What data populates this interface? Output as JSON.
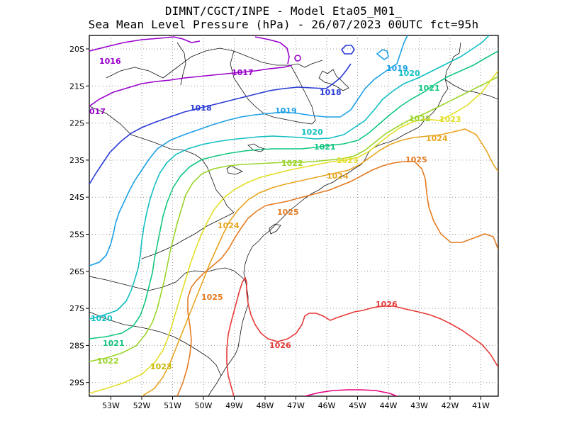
{
  "title_line1": "DIMNT/CGCT/INPE -  Model Eta05_M01_",
  "title_line2": "Sea Mean Level Pressure (hPa) - 26/07/2023 00UTC fct=95h",
  "lon_labels": [
    "53W",
    "52W",
    "51W",
    "50W",
    "49W",
    "48W",
    "47W",
    "46W",
    "45W",
    "44W",
    "43W",
    "42W",
    "41W"
  ],
  "lat_labels": [
    "20S",
    "21S",
    "22S",
    "23S",
    "24S",
    "25S",
    "26S",
    "27S",
    "28S",
    "29S"
  ],
  "isobars": [
    {
      "value": "1016",
      "color": "#9900cc"
    },
    {
      "value": "1017",
      "color": "#9900cc"
    },
    {
      "value": "1018",
      "color": "#2a3bd6"
    },
    {
      "value": "1019",
      "color": "#1ca0e6"
    },
    {
      "value": "1020",
      "color": "#12bfc2"
    },
    {
      "value": "1021",
      "color": "#12c680"
    },
    {
      "value": "1022",
      "color": "#9bd52a"
    },
    {
      "value": "1023",
      "color": "#e3de27"
    },
    {
      "value": "1024",
      "color": "#e8a520"
    },
    {
      "value": "1025",
      "color": "#e57b22"
    },
    {
      "value": "1026",
      "color": "#e63a38"
    }
  ],
  "label_text": {
    "l1016": "1016",
    "l1017": "1017",
    "l1017b": "017",
    "l1018a": "1018",
    "l1018b": "1018",
    "l1019a": "1019",
    "l1019b": "1019",
    "l1020a": "1020",
    "l1020b": "1020",
    "l1020c": "1020",
    "l1021a": "1021",
    "l1021b": "1021",
    "l1021c": "1021",
    "l1022a": "1022",
    "l1022b": "1022",
    "l1022c": "1022",
    "l1023a": "1023",
    "l1023b": "1023",
    "l1023c": "1023",
    "l1024a": "1024",
    "l1024b": "1024",
    "l1024c": "1024",
    "l1025a": "1025",
    "l1025b": "1025",
    "l1025c": "1025",
    "l1026a": "1026",
    "l1026b": "1026"
  }
}
